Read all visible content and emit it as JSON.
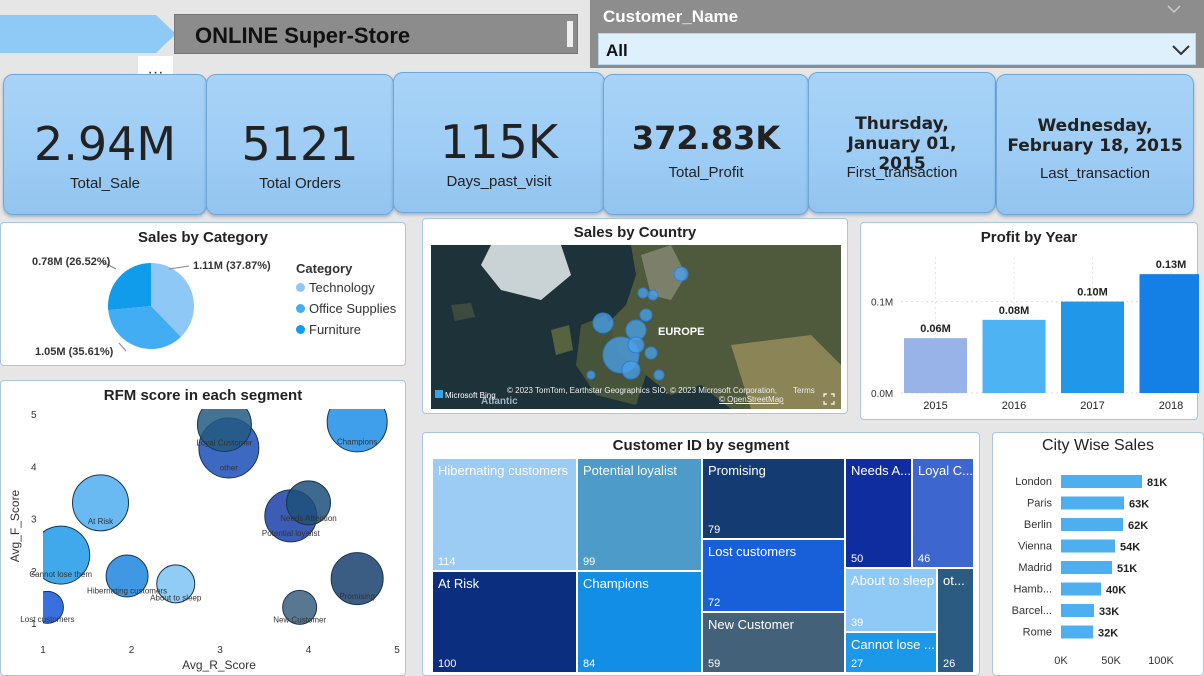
{
  "header": {
    "title": "ONLINE Super-Store",
    "more_label": "···"
  },
  "slicer": {
    "label": "Customer_Name",
    "value": "All"
  },
  "kpis": [
    {
      "value": "2.94M",
      "label": "Total_Sale"
    },
    {
      "value": "5121",
      "label": "Total Orders"
    },
    {
      "value": "115K",
      "label": "Days_past_visit"
    },
    {
      "value": "372.83K",
      "label": "Total_Profit"
    },
    {
      "value": "Thursday, January 01, 2015",
      "label": "First_transaction"
    },
    {
      "value": "Wednesday, February 18, 2015",
      "label": "Last_transaction"
    }
  ],
  "sales_by_category": {
    "title": "Sales by Category",
    "legend_title": "Category",
    "slices": [
      {
        "name": "Technology",
        "value": 1.11,
        "label": "1.11M (37.87%)",
        "color": "#8ec8f6"
      },
      {
        "name": "Office Supplies",
        "value": 1.05,
        "label": "1.05M (35.61%)",
        "color": "#42adf2"
      },
      {
        "name": "Furniture",
        "value": 0.78,
        "label": "0.78M (26.52%)",
        "color": "#119ceb"
      }
    ]
  },
  "map": {
    "title": "Sales by Country",
    "region_label": "EUROPE",
    "ocean_label": "Atlantic",
    "attribution": "© 2023 TomTom, Earthstar Geographics SIO, © 2023 Microsoft Corporation,",
    "terms": "Terms",
    "osm": "© OpenStreetMap",
    "bing": "Microsoft Bing"
  },
  "profit_by_year": {
    "title": "Profit by Year",
    "y_ticks": [
      "0.0M",
      "0.1M"
    ],
    "bars": [
      {
        "year": "2015",
        "value": 0.06,
        "label": "0.06M",
        "color": "#98b3e8"
      },
      {
        "year": "2016",
        "value": 0.08,
        "label": "0.08M",
        "color": "#4db3f2"
      },
      {
        "year": "2017",
        "value": 0.1,
        "label": "0.10M",
        "color": "#2197ea"
      },
      {
        "year": "2018",
        "value": 0.13,
        "label": "0.13M",
        "color": "#1480e6"
      }
    ]
  },
  "chart_data": [
    {
      "type": "scatter",
      "title": "RFM score in each segment",
      "xlabel": "Avg_R_Score",
      "ylabel": "Avg_F_Score",
      "xlim": [
        1,
        5
      ],
      "ylim": [
        1,
        5
      ],
      "x_ticks": [
        "1",
        "2",
        "3",
        "4",
        "5"
      ],
      "y_ticks": [
        "1",
        "2",
        "3",
        "4",
        "5"
      ],
      "points": [
        {
          "name": "Champions",
          "x": 4.55,
          "y": 4.85,
          "r": 30,
          "color": "#1f8ee6"
        },
        {
          "name": "other",
          "x": 3.1,
          "y": 4.35,
          "r": 30,
          "color": "#1c4fb9"
        },
        {
          "name": "Loyal Customer",
          "x": 3.05,
          "y": 4.8,
          "r": 27,
          "color": "#235a80"
        },
        {
          "name": "At Risk",
          "x": 1.65,
          "y": 3.3,
          "r": 28,
          "color": "#4fadf0"
        },
        {
          "name": "Potential loyalist",
          "x": 3.8,
          "y": 3.05,
          "r": 26,
          "color": "#1b3fa8"
        },
        {
          "name": "Needs Attention",
          "x": 4.0,
          "y": 3.3,
          "r": 22,
          "color": "#1d4f7a"
        },
        {
          "name": "Cannot lose them",
          "x": 1.2,
          "y": 2.3,
          "r": 29,
          "color": "#1e9ae8"
        },
        {
          "name": "Hibernating customers",
          "x": 1.95,
          "y": 1.9,
          "r": 21,
          "color": "#1f86e0"
        },
        {
          "name": "About to sleep",
          "x": 2.5,
          "y": 1.75,
          "r": 19,
          "color": "#7cc3f3"
        },
        {
          "name": "New Customer",
          "x": 3.9,
          "y": 1.3,
          "r": 17,
          "color": "#3b5f7c"
        },
        {
          "name": "Promising",
          "x": 4.55,
          "y": 1.85,
          "r": 26,
          "color": "#193f6d"
        },
        {
          "name": "Lost customers",
          "x": 1.05,
          "y": 1.3,
          "r": 16,
          "color": "#1557d8"
        }
      ]
    },
    {
      "type": "treemap",
      "title": "Customer ID by segment",
      "items": [
        {
          "name": "Hibernating customers",
          "value": 114
        },
        {
          "name": "At Risk",
          "value": 100
        },
        {
          "name": "Potential loyalist",
          "value": 99
        },
        {
          "name": "Champions",
          "value": 84
        },
        {
          "name": "Promising",
          "value": 79
        },
        {
          "name": "Lost customers",
          "value": 72
        },
        {
          "name": "New Customer",
          "value": 59
        },
        {
          "name": "Needs A...",
          "value": 50
        },
        {
          "name": "Loyal C...",
          "value": 46
        },
        {
          "name": "About to sleep",
          "value": 39
        },
        {
          "name": "Cannot lose ...",
          "value": 27
        },
        {
          "name": "ot...",
          "value": 26
        }
      ]
    },
    {
      "type": "bar",
      "orientation": "horizontal",
      "title": "City Wise Sales",
      "categories": [
        "London",
        "Paris",
        "Berlin",
        "Vienna",
        "Madrid",
        "Hamb...",
        "Barcel...",
        "Rome"
      ],
      "values": [
        81,
        63,
        62,
        54,
        51,
        40,
        33,
        32
      ],
      "value_labels": [
        "81K",
        "63K",
        "62K",
        "54K",
        "51K",
        "40K",
        "33K",
        "32K"
      ],
      "x_ticks": [
        "0K",
        "50K",
        "100K"
      ],
      "xlim": [
        0,
        100
      ],
      "color": "#4daef0"
    }
  ],
  "colors": {
    "kpi_bg": "#9dccf5",
    "header_bg": "#8a8a8a",
    "slicer_bg": "#dff0fd"
  }
}
